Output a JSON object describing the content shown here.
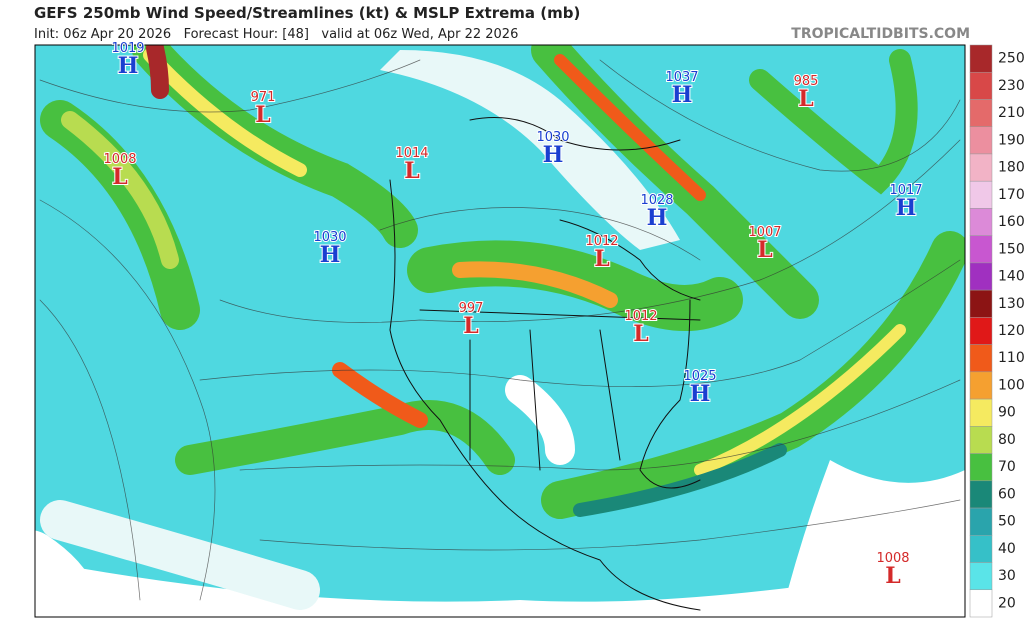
{
  "header": {
    "title": "GEFS 250mb Wind Speed/Streamlines (kt) & MSLP Extrema (mb)",
    "subtitle": "Init: 06z Apr 20 2026   Forecast Hour: [48]   valid at 06z Wed, Apr 22 2026",
    "source": "TROPICALTIDBITS.COM"
  },
  "extrema": [
    {
      "value": "1019",
      "letter": "H",
      "color": "#1a3fd0"
    },
    {
      "value": "971",
      "letter": "L",
      "color": "#d42a2a"
    },
    {
      "value": "1008",
      "letter": "L",
      "color": "#d42a2a"
    },
    {
      "value": "1014",
      "letter": "L",
      "color": "#d42a2a"
    },
    {
      "value": "1030",
      "letter": "H",
      "color": "#1a3fd0"
    },
    {
      "value": "1030",
      "letter": "H",
      "color": "#1a3fd0"
    },
    {
      "value": "1037",
      "letter": "H",
      "color": "#1a3fd0"
    },
    {
      "value": "985",
      "letter": "L",
      "color": "#d42a2a"
    },
    {
      "value": "1017",
      "letter": "H",
      "color": "#1a3fd0"
    },
    {
      "value": "1028",
      "letter": "H",
      "color": "#1a3fd0"
    },
    {
      "value": "1012",
      "letter": "L",
      "color": "#d42a2a"
    },
    {
      "value": "1007",
      "letter": "L",
      "color": "#d42a2a"
    },
    {
      "value": "997",
      "letter": "L",
      "color": "#d42a2a"
    },
    {
      "value": "1012",
      "letter": "L",
      "color": "#d42a2a"
    },
    {
      "value": "1025",
      "letter": "H",
      "color": "#1a3fd0"
    },
    {
      "value": "1008",
      "letter": "L",
      "color": "#d42a2a"
    }
  ],
  "colorbar": [
    {
      "label": "250",
      "color": "#a8282a"
    },
    {
      "label": "230",
      "color": "#d84848"
    },
    {
      "label": "210",
      "color": "#e46a6a"
    },
    {
      "label": "190",
      "color": "#ec8f9f"
    },
    {
      "label": "180",
      "color": "#f2b3c6"
    },
    {
      "label": "170",
      "color": "#f0c8e8"
    },
    {
      "label": "160",
      "color": "#dc8ad8"
    },
    {
      "label": "150",
      "color": "#c857d0"
    },
    {
      "label": "140",
      "color": "#a030c0"
    },
    {
      "label": "130",
      "color": "#8c1414"
    },
    {
      "label": "120",
      "color": "#e01818"
    },
    {
      "label": "110",
      "color": "#f05a1a"
    },
    {
      "label": "100",
      "color": "#f5a030"
    },
    {
      "label": "90",
      "color": "#f5ea60"
    },
    {
      "label": "80",
      "color": "#b8dc50"
    },
    {
      "label": "70",
      "color": "#48c040"
    },
    {
      "label": "60",
      "color": "#1a8878"
    },
    {
      "label": "50",
      "color": "#2aa4ac"
    },
    {
      "label": "40",
      "color": "#36c0c8"
    },
    {
      "label": "30",
      "color": "#5ae4e8"
    },
    {
      "label": "20",
      "color": "#ffffff"
    }
  ]
}
